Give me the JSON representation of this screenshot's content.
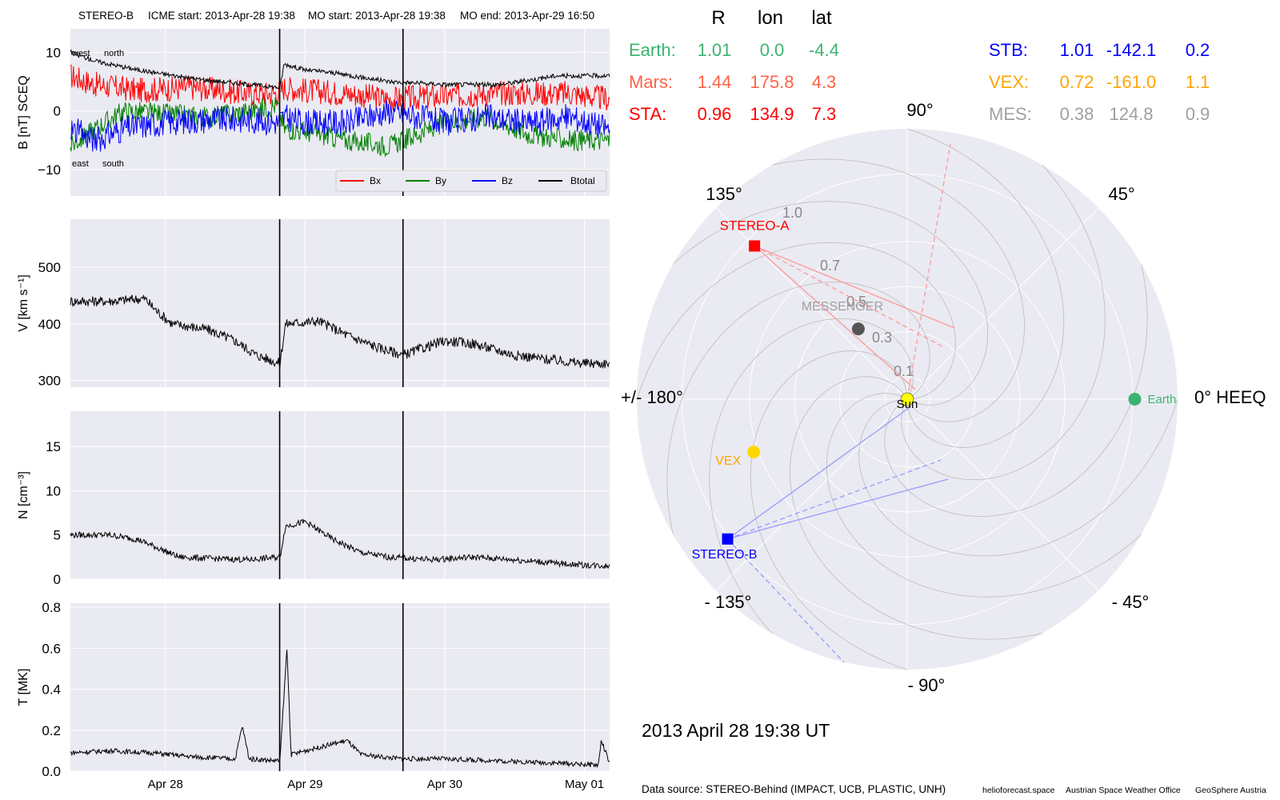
{
  "header": {
    "spacecraft": "STEREO-B",
    "icme_start": "ICME start: 2013-Apr-28 19:38",
    "mo_start": "MO start: 2013-Apr-28 19:38",
    "mo_end": "MO end: 2013-Apr-29 16:50"
  },
  "timestamp": "2013 April 28  19:38 UT",
  "footer": {
    "source": "Data source: STEREO-Behind (IMPACT, UCB, PLASTIC, UNH)",
    "credit1": "helioforecast.space",
    "credit2": "Austrian Space Weather Office",
    "credit3": "GeoSphere Austria"
  },
  "colors": {
    "panel_bg": "#eaeaf2",
    "earth": "#3cb371",
    "mars": "#ff6347",
    "sta": "#ff0000",
    "stb": "#0000ff",
    "vex": "#ffa500",
    "mes": "#a0a0a0",
    "bx": "#ff0000",
    "by": "#008000",
    "bz": "#0000ff",
    "btotal": "#000000"
  },
  "position_table": {
    "headers": [
      "R",
      "lon",
      "lat"
    ],
    "left_rows": [
      {
        "key": "earth",
        "label": "Earth:",
        "r": "1.01",
        "lon": "0.0",
        "lat": "-4.4"
      },
      {
        "key": "mars",
        "label": "Mars:",
        "r": "1.44",
        "lon": "175.8",
        "lat": "4.3"
      },
      {
        "key": "sta",
        "label": "STA:",
        "r": "0.96",
        "lon": "134.9",
        "lat": "7.3"
      }
    ],
    "right_rows": [
      {
        "key": "stb",
        "label": "STB:",
        "r": "1.01",
        "lon": "-142.1",
        "lat": "0.2"
      },
      {
        "key": "vex",
        "label": "VEX:",
        "r": "0.72",
        "lon": "-161.0",
        "lat": "1.1"
      },
      {
        "key": "mes",
        "label": "MES:",
        "r": "0.38",
        "lon": "124.8",
        "lat": "0.9"
      }
    ]
  },
  "chart_data": [
    {
      "type": "line",
      "panel": "magnetic-field",
      "ylabel": "B [nT] SCEQ",
      "ylim": [
        -14.5,
        14
      ],
      "yticks": [
        "10",
        "0",
        "−10"
      ],
      "ytick_values": [
        10,
        0,
        -10
      ],
      "xlim_days": [
        27.32,
        31.18
      ],
      "xticks": [
        "Apr 28",
        "Apr 29",
        "Apr 30",
        "May 01"
      ],
      "xtick_values": [
        28,
        29,
        30,
        31
      ],
      "grid": true,
      "legend_position": "lower-right",
      "annotations": {
        "west": "west",
        "north": "north",
        "east": "east",
        "south": "south"
      },
      "series": [
        {
          "name": "Bx",
          "color": "#ff0000",
          "points": [
            [
              27.32,
              6
            ],
            [
              27.5,
              4.5
            ],
            [
              27.8,
              3.5
            ],
            [
              28.2,
              4
            ],
            [
              28.6,
              3
            ],
            [
              28.8,
              3
            ],
            [
              28.85,
              4
            ],
            [
              29.0,
              3.5
            ],
            [
              29.3,
              3
            ],
            [
              29.6,
              2
            ],
            [
              30.0,
              2.5
            ],
            [
              30.3,
              3
            ],
            [
              30.6,
              3
            ],
            [
              30.9,
              3
            ],
            [
              31.18,
              2
            ]
          ]
        },
        {
          "name": "By",
          "color": "#008000",
          "points": [
            [
              27.32,
              -6
            ],
            [
              27.5,
              -3
            ],
            [
              27.7,
              0
            ],
            [
              28.0,
              -0.5
            ],
            [
              28.3,
              -1
            ],
            [
              28.6,
              0
            ],
            [
              28.8,
              1
            ],
            [
              28.85,
              -3
            ],
            [
              29.0,
              -3.5
            ],
            [
              29.3,
              -5
            ],
            [
              29.6,
              -6
            ],
            [
              30.0,
              -2
            ],
            [
              30.3,
              -1
            ],
            [
              30.6,
              -4
            ],
            [
              30.9,
              -5
            ],
            [
              31.18,
              -5
            ]
          ]
        },
        {
          "name": "Bz",
          "color": "#0000ff",
          "points": [
            [
              27.32,
              -3
            ],
            [
              27.5,
              -5
            ],
            [
              27.7,
              -3
            ],
            [
              28.0,
              -2
            ],
            [
              28.3,
              -1.5
            ],
            [
              28.6,
              -1.5
            ],
            [
              28.8,
              -2
            ],
            [
              28.85,
              -1
            ],
            [
              29.0,
              -2
            ],
            [
              29.3,
              -2
            ],
            [
              29.6,
              0
            ],
            [
              30.0,
              -2
            ],
            [
              30.3,
              -1
            ],
            [
              30.6,
              -2
            ],
            [
              30.9,
              -1
            ],
            [
              31.18,
              -3
            ]
          ]
        },
        {
          "name": "Btotal",
          "color": "#000000",
          "points": [
            [
              27.32,
              10
            ],
            [
              27.5,
              8.5
            ],
            [
              27.8,
              7
            ],
            [
              28.2,
              5.5
            ],
            [
              28.6,
              4.5
            ],
            [
              28.82,
              4
            ],
            [
              28.85,
              8
            ],
            [
              29.0,
              7
            ],
            [
              29.2,
              6.5
            ],
            [
              29.6,
              5
            ],
            [
              30.0,
              4.5
            ],
            [
              30.4,
              4.5
            ],
            [
              30.8,
              6
            ],
            [
              31.18,
              6
            ]
          ]
        }
      ]
    },
    {
      "type": "line",
      "panel": "speed",
      "ylabel": "V [km s⁻¹]",
      "ylim": [
        288,
        585
      ],
      "yticks": [
        "500",
        "400",
        "300"
      ],
      "ytick_values": [
        500,
        400,
        300
      ],
      "xlim_days": [
        27.32,
        31.18
      ],
      "xticks": [
        "Apr 28",
        "Apr 29",
        "Apr 30",
        "May 01"
      ],
      "xtick_values": [
        28,
        29,
        30,
        31
      ],
      "grid": true,
      "series": [
        {
          "name": "",
          "color": "#000000",
          "points": [
            [
              27.32,
              440
            ],
            [
              27.6,
              440
            ],
            [
              27.85,
              445
            ],
            [
              27.95,
              420
            ],
            [
              28.05,
              400
            ],
            [
              28.3,
              390
            ],
            [
              28.5,
              370
            ],
            [
              28.65,
              345
            ],
            [
              28.82,
              330
            ],
            [
              28.86,
              400
            ],
            [
              29.1,
              405
            ],
            [
              29.3,
              380
            ],
            [
              29.5,
              360
            ],
            [
              29.7,
              345
            ],
            [
              30.0,
              370
            ],
            [
              30.2,
              365
            ],
            [
              30.5,
              345
            ],
            [
              30.8,
              335
            ],
            [
              31.0,
              330
            ],
            [
              31.18,
              330
            ]
          ]
        }
      ]
    },
    {
      "type": "line",
      "panel": "density",
      "ylabel": "N [cm⁻³]",
      "ylim": [
        0,
        19
      ],
      "yticks": [
        "15",
        "10",
        "5",
        "0"
      ],
      "ytick_values": [
        15,
        10,
        5,
        0
      ],
      "xlim_days": [
        27.32,
        31.18
      ],
      "xticks": [
        "Apr 28",
        "Apr 29",
        "Apr 30",
        "May 01"
      ],
      "xtick_values": [
        28,
        29,
        30,
        31
      ],
      "grid": true,
      "series": [
        {
          "name": "",
          "color": "#000000",
          "points": [
            [
              27.32,
              5
            ],
            [
              27.6,
              5
            ],
            [
              27.8,
              4.5
            ],
            [
              27.95,
              3.5
            ],
            [
              28.1,
              2.5
            ],
            [
              28.4,
              2.3
            ],
            [
              28.6,
              2.2
            ],
            [
              28.82,
              2.5
            ],
            [
              28.86,
              6
            ],
            [
              29.0,
              6.5
            ],
            [
              29.2,
              4.5
            ],
            [
              29.4,
              3
            ],
            [
              29.6,
              2.5
            ],
            [
              29.9,
              2.2
            ],
            [
              30.2,
              2.5
            ],
            [
              30.5,
              2.2
            ],
            [
              30.8,
              1.8
            ],
            [
              31.0,
              1.6
            ],
            [
              31.18,
              1.5
            ]
          ]
        }
      ]
    },
    {
      "type": "line",
      "panel": "temperature",
      "ylabel": "T [MK]",
      "ylim": [
        0,
        0.82
      ],
      "yticks": [
        "0.8",
        "0.6",
        "0.4",
        "0.2",
        "0.0"
      ],
      "ytick_values": [
        0.8,
        0.6,
        0.4,
        0.2,
        0.0
      ],
      "xlim_days": [
        27.32,
        31.18
      ],
      "xticks": [
        "Apr 28",
        "Apr 29",
        "Apr 30",
        "May 01"
      ],
      "xtick_values": [
        28,
        29,
        30,
        31
      ],
      "grid": true,
      "series": [
        {
          "name": "",
          "color": "#000000",
          "points": [
            [
              27.32,
              0.09
            ],
            [
              27.6,
              0.1
            ],
            [
              27.9,
              0.09
            ],
            [
              28.2,
              0.07
            ],
            [
              28.5,
              0.06
            ],
            [
              28.55,
              0.22
            ],
            [
              28.6,
              0.06
            ],
            [
              28.82,
              0.05
            ],
            [
              28.87,
              0.6
            ],
            [
              28.9,
              0.08
            ],
            [
              29.0,
              0.1
            ],
            [
              29.3,
              0.15
            ],
            [
              29.4,
              0.08
            ],
            [
              29.7,
              0.06
            ],
            [
              30.0,
              0.06
            ],
            [
              30.4,
              0.05
            ],
            [
              30.8,
              0.04
            ],
            [
              31.1,
              0.03
            ],
            [
              31.12,
              0.15
            ],
            [
              31.18,
              0.04
            ]
          ]
        }
      ]
    },
    {
      "type": "scatter",
      "panel": "polar-positions",
      "projection": "polar",
      "rlim": [
        0,
        1.2
      ],
      "r_tick_labels": [
        "0.1",
        "0.3",
        "0.5",
        "0.7",
        "1.0"
      ],
      "r_tick_values": [
        0.1,
        0.3,
        0.5,
        0.7,
        1.0
      ],
      "angle_labels": [
        {
          "text": "0° HEEQ",
          "deg": 0
        },
        {
          "text": "45°",
          "deg": 45
        },
        {
          "text": "90°",
          "deg": 90
        },
        {
          "text": "135°",
          "deg": 135
        },
        {
          "text": "+/- 180°",
          "deg": 180
        },
        {
          "text": "- 135°",
          "deg": -135
        },
        {
          "text": "- 90°",
          "deg": -90
        },
        {
          "text": "- 45°",
          "deg": -45
        }
      ],
      "bodies": [
        {
          "name": "Sun",
          "r": 0.0,
          "lon": 0,
          "marker": "circle",
          "color": "#ffff00"
        },
        {
          "name": "Earth",
          "r": 1.01,
          "lon": 0.0,
          "marker": "circle",
          "color": "#3cb371"
        },
        {
          "name": "STEREO-A",
          "r": 0.96,
          "lon": 134.9,
          "marker": "square",
          "color": "#ff0000"
        },
        {
          "name": "STEREO-B",
          "r": 1.01,
          "lon": -142.1,
          "marker": "square",
          "color": "#0000ff"
        },
        {
          "name": "VEX",
          "r": 0.72,
          "lon": -161.0,
          "marker": "circle",
          "color": "#ffd700"
        },
        {
          "name": "MESSENGER",
          "r": 0.38,
          "lon": 124.8,
          "marker": "circle",
          "color": "#555555"
        }
      ]
    }
  ]
}
